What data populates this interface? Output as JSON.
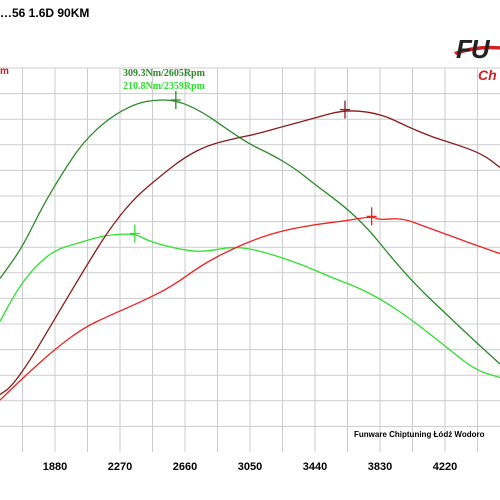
{
  "title": "…56 1.6D 90KM",
  "left_unit": "m",
  "peak_labels": {
    "tuned": "309.3Nm/2605Rpm",
    "stock": "210.8Nm/2359Rpm"
  },
  "logo": {
    "word": "FU",
    "sub": "Ch"
  },
  "credit": "Funware Chiptuning Łódź Wodoro",
  "colors": {
    "tuned_torque": "#2a8a2a",
    "stock_torque": "#2fe02f",
    "tuned_power": "#8b1a1a",
    "stock_power": "#ee2222",
    "grid": "#cccccc",
    "logo_red": "#d02020"
  },
  "chart_data": {
    "type": "line",
    "x_axis": {
      "ticks": [
        1880,
        2270,
        2660,
        3050,
        3440,
        3830,
        4220
      ],
      "range": [
        1550,
        4550
      ]
    },
    "grid": true,
    "series": [
      {
        "key": "tuned_torque",
        "points": [
          [
            1550,
            0.405
          ],
          [
            1680,
            0.505
          ],
          [
            1800,
            0.64
          ],
          [
            1930,
            0.762
          ],
          [
            2050,
            0.86
          ],
          [
            2200,
            0.938
          ],
          [
            2350,
            0.985
          ],
          [
            2465,
            1.0
          ],
          [
            2605,
            1.0
          ],
          [
            2760,
            0.962
          ],
          [
            2930,
            0.896
          ],
          [
            3050,
            0.852
          ],
          [
            3180,
            0.818
          ],
          [
            3320,
            0.772
          ],
          [
            3440,
            0.718
          ],
          [
            3620,
            0.644
          ],
          [
            3760,
            0.57
          ],
          [
            3900,
            0.474
          ],
          [
            4050,
            0.38
          ],
          [
            4220,
            0.29
          ],
          [
            4400,
            0.196
          ],
          [
            4550,
            0.12
          ]
        ]
      },
      {
        "key": "stock_torque",
        "points": [
          [
            1550,
            0.262
          ],
          [
            1650,
            0.365
          ],
          [
            1760,
            0.445
          ],
          [
            1880,
            0.5
          ],
          [
            2000,
            0.52
          ],
          [
            2120,
            0.54
          ],
          [
            2200,
            0.55
          ],
          [
            2359,
            0.555
          ],
          [
            2440,
            0.53
          ],
          [
            2600,
            0.505
          ],
          [
            2760,
            0.492
          ],
          [
            2930,
            0.51
          ],
          [
            3050,
            0.505
          ],
          [
            3200,
            0.482
          ],
          [
            3370,
            0.45
          ],
          [
            3530,
            0.41
          ],
          [
            3700,
            0.375
          ],
          [
            3870,
            0.325
          ],
          [
            4050,
            0.255
          ],
          [
            4220,
            0.18
          ],
          [
            4400,
            0.1
          ],
          [
            4550,
            0.075
          ]
        ]
      },
      {
        "key": "tuned_power",
        "points": [
          [
            1550,
            0.018
          ],
          [
            1620,
            0.045
          ],
          [
            1740,
            0.14
          ],
          [
            1880,
            0.272
          ],
          [
            2050,
            0.43
          ],
          [
            2200,
            0.565
          ],
          [
            2350,
            0.67
          ],
          [
            2520,
            0.75
          ],
          [
            2660,
            0.81
          ],
          [
            2800,
            0.85
          ],
          [
            2960,
            0.872
          ],
          [
            3100,
            0.888
          ],
          [
            3250,
            0.912
          ],
          [
            3440,
            0.94
          ],
          [
            3620,
            0.968
          ],
          [
            3830,
            0.955
          ],
          [
            4000,
            0.91
          ],
          [
            4150,
            0.875
          ],
          [
            4300,
            0.85
          ],
          [
            4450,
            0.818
          ],
          [
            4550,
            0.775
          ]
        ]
      },
      {
        "key": "stock_power",
        "points": [
          [
            1550,
            0.0
          ],
          [
            1700,
            0.08
          ],
          [
            1880,
            0.17
          ],
          [
            2050,
            0.24
          ],
          [
            2200,
            0.28
          ],
          [
            2400,
            0.328
          ],
          [
            2580,
            0.378
          ],
          [
            2760,
            0.45
          ],
          [
            2930,
            0.5
          ],
          [
            3100,
            0.54
          ],
          [
            3250,
            0.565
          ],
          [
            3440,
            0.585
          ],
          [
            3620,
            0.597
          ],
          [
            3780,
            0.612
          ],
          [
            3830,
            0.6
          ],
          [
            3960,
            0.607
          ],
          [
            4100,
            0.578
          ],
          [
            4250,
            0.548
          ],
          [
            4400,
            0.517
          ],
          [
            4550,
            0.488
          ]
        ]
      }
    ],
    "peak_markers": [
      {
        "series": "tuned_torque",
        "x": 2605
      },
      {
        "series": "stock_torque",
        "x": 2359
      },
      {
        "series": "tuned_power",
        "x": 3620
      },
      {
        "series": "stock_power",
        "x": 3780
      }
    ]
  }
}
